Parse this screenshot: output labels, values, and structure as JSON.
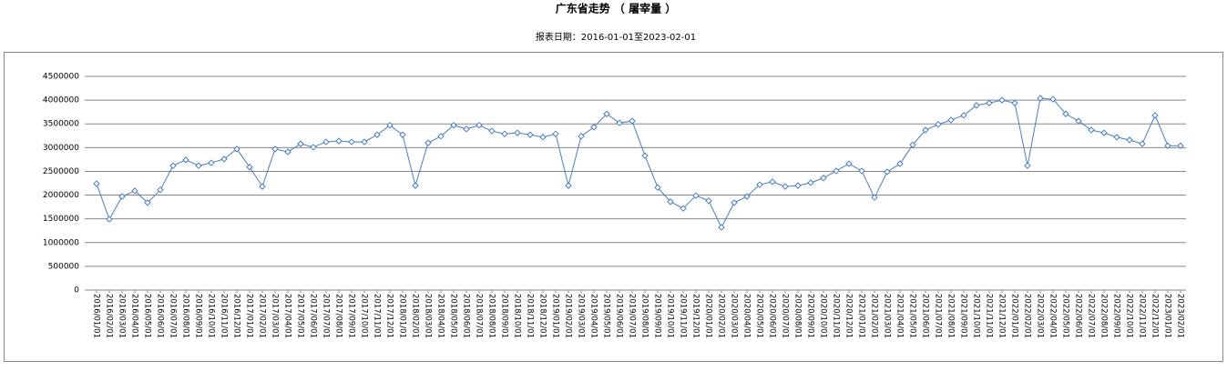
{
  "chart_data": {
    "type": "line",
    "title": "广东省走势 （ 屠宰量 ）",
    "subtitle": "报表日期：2016-01-01至2023-02-01",
    "categories": [
      "2016/01/01",
      "2016/02/01",
      "2016/03/01",
      "2016/04/01",
      "2016/05/01",
      "2016/06/01",
      "2016/07/01",
      "2016/08/01",
      "2016/09/01",
      "2016/10/01",
      "2016/11/01",
      "2016/12/01",
      "2017/01/01",
      "2017/02/01",
      "2017/03/01",
      "2017/04/01",
      "2017/05/01",
      "2017/06/01",
      "2017/07/01",
      "2017/08/01",
      "2017/09/01",
      "2017/10/01",
      "2017/11/01",
      "2017/12/01",
      "2018/01/01",
      "2018/02/01",
      "2018/03/01",
      "2018/04/01",
      "2018/05/01",
      "2018/06/01",
      "2018/07/01",
      "2018/08/01",
      "2018/09/01",
      "2018/10/01",
      "2018/11/01",
      "2018/12/01",
      "2019/01/01",
      "2019/02/01",
      "2019/03/01",
      "2019/04/01",
      "2019/05/01",
      "2019/06/01",
      "2019/07/01",
      "2019/08/01",
      "2019/09/01",
      "2019/10/01",
      "2019/11/01",
      "2019/12/01",
      "2020/01/01",
      "2020/02/01",
      "2020/03/01",
      "2020/04/01",
      "2020/05/01",
      "2020/06/01",
      "2020/07/01",
      "2020/08/01",
      "2020/09/01",
      "2020/10/01",
      "2020/11/01",
      "2020/12/01",
      "2021/01/01",
      "2021/02/01",
      "2021/03/01",
      "2021/04/01",
      "2021/05/01",
      "2021/06/01",
      "2021/07/01",
      "2021/08/01",
      "2021/09/01",
      "2021/10/01",
      "2021/11/01",
      "2021/12/01",
      "2022/01/01",
      "2022/02/01",
      "2022/03/01",
      "2022/04/01",
      "2022/05/01",
      "2022/06/01",
      "2022/07/01",
      "2022/08/01",
      "2022/09/01",
      "2022/10/01",
      "2022/11/01",
      "2022/12/01",
      "2023/01/01",
      "2023/02/01"
    ],
    "values": [
      2240000,
      1490000,
      1970000,
      2090000,
      1840000,
      2110000,
      2620000,
      2740000,
      2620000,
      2680000,
      2760000,
      2970000,
      2590000,
      2180000,
      2970000,
      2910000,
      3080000,
      3010000,
      3120000,
      3140000,
      3120000,
      3120000,
      3270000,
      3470000,
      3270000,
      2200000,
      3100000,
      3240000,
      3470000,
      3390000,
      3470000,
      3350000,
      3290000,
      3310000,
      3270000,
      3220000,
      3290000,
      2200000,
      3240000,
      3430000,
      3710000,
      3520000,
      3560000,
      2830000,
      2160000,
      1860000,
      1720000,
      1990000,
      1880000,
      1320000,
      1840000,
      1970000,
      2220000,
      2280000,
      2180000,
      2200000,
      2260000,
      2360000,
      2510000,
      2660000,
      2510000,
      1950000,
      2490000,
      2660000,
      3060000,
      3370000,
      3490000,
      3580000,
      3680000,
      3890000,
      3940000,
      4000000,
      3940000,
      2620000,
      4040000,
      4020000,
      3710000,
      3560000,
      3370000,
      3310000,
      3220000,
      3160000,
      3080000,
      3680000,
      3040000,
      3040000
    ],
    "color": "#4a7ebb",
    "ylim": [
      0,
      4500000
    ],
    "yticks": [
      0,
      500000,
      1000000,
      1500000,
      2000000,
      2500000,
      3000000,
      3500000,
      4000000,
      4500000
    ],
    "grid": true
  }
}
